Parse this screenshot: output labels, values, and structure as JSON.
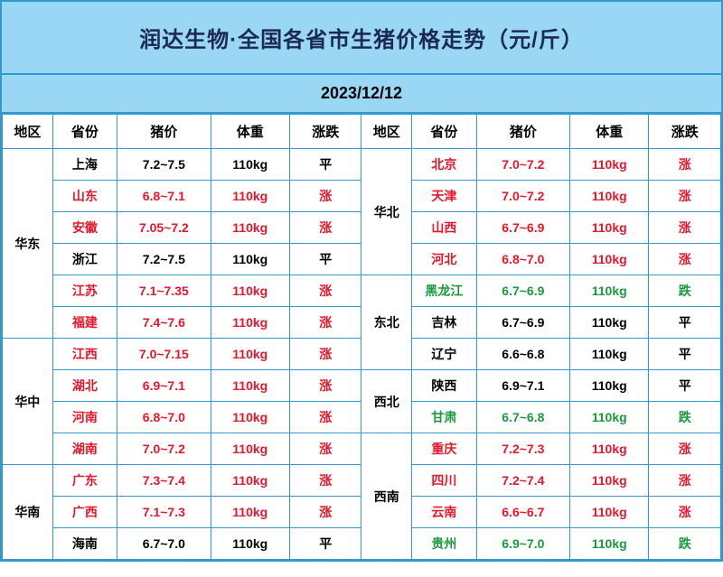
{
  "title": "润达生物·全国各省市生猪价格走势（元/斤）",
  "date": "2023/12/12",
  "colors": {
    "border": "#3399cc",
    "header_bg": "#9ad7f5",
    "title_color": "#1a2a55",
    "up": "#e6172a",
    "down": "#1a9a3a",
    "flat": "#000000",
    "cell_bg": "#ffffff"
  },
  "headers": [
    "地区",
    "省份",
    "猪价",
    "体重",
    "涨跌",
    "地区",
    "省份",
    "猪价",
    "体重",
    "涨跌"
  ],
  "rows": [
    {
      "left_region": {
        "text": "华东",
        "span": 6,
        "color": "black"
      },
      "left": {
        "prov": "上海",
        "price": "7.2~7.5",
        "weight": "110kg",
        "trend": "平",
        "color": "black"
      },
      "right_region": {
        "text": "华北",
        "span": 4,
        "color": "black"
      },
      "right": {
        "prov": "北京",
        "price": "7.0~7.2",
        "weight": "110kg",
        "trend": "涨",
        "color": "red"
      }
    },
    {
      "left": {
        "prov": "山东",
        "price": "6.8~7.1",
        "weight": "110kg",
        "trend": "涨",
        "color": "red"
      },
      "right": {
        "prov": "天津",
        "price": "7.0~7.2",
        "weight": "110kg",
        "trend": "涨",
        "color": "red"
      }
    },
    {
      "left": {
        "prov": "安徽",
        "price": "7.05~7.2",
        "weight": "110kg",
        "trend": "涨",
        "color": "red"
      },
      "right": {
        "prov": "山西",
        "price": "6.7~6.9",
        "weight": "110kg",
        "trend": "涨",
        "color": "red"
      }
    },
    {
      "left": {
        "prov": "浙江",
        "price": "7.2~7.5",
        "weight": "110kg",
        "trend": "平",
        "color": "black"
      },
      "right": {
        "prov": "河北",
        "price": "6.8~7.0",
        "weight": "110kg",
        "trend": "涨",
        "color": "red"
      }
    },
    {
      "left": {
        "prov": "江苏",
        "price": "7.1~7.35",
        "weight": "110kg",
        "trend": "涨",
        "color": "red"
      },
      "right_region": {
        "text": "东北",
        "span": 3,
        "color": "black"
      },
      "right": {
        "prov": "黑龙江",
        "price": "6.7~6.9",
        "weight": "110kg",
        "trend": "跌",
        "color": "green"
      }
    },
    {
      "left": {
        "prov": "福建",
        "price": "7.4~7.6",
        "weight": "110kg",
        "trend": "涨",
        "color": "red"
      },
      "right": {
        "prov": "吉林",
        "price": "6.7~6.9",
        "weight": "110kg",
        "trend": "平",
        "color": "black"
      }
    },
    {
      "left_region": {
        "text": "华中",
        "span": 4,
        "color": "black"
      },
      "left": {
        "prov": "江西",
        "price": "7.0~7.15",
        "weight": "110kg",
        "trend": "涨",
        "color": "red"
      },
      "right": {
        "prov": "辽宁",
        "price": "6.6~6.8",
        "weight": "110kg",
        "trend": "平",
        "color": "black"
      }
    },
    {
      "left": {
        "prov": "湖北",
        "price": "6.9~7.1",
        "weight": "110kg",
        "trend": "涨",
        "color": "red"
      },
      "right_region": {
        "text": "西北",
        "span": 2,
        "color": "black"
      },
      "right": {
        "prov": "陕西",
        "price": "6.9~7.1",
        "weight": "110kg",
        "trend": "平",
        "color": "black"
      }
    },
    {
      "left": {
        "prov": "河南",
        "price": "6.8~7.0",
        "weight": "110kg",
        "trend": "涨",
        "color": "red"
      },
      "right": {
        "prov": "甘肃",
        "price": "6.7~6.8",
        "weight": "110kg",
        "trend": "跌",
        "color": "green"
      }
    },
    {
      "left": {
        "prov": "湖南",
        "price": "7.0~7.2",
        "weight": "110kg",
        "trend": "涨",
        "color": "red"
      },
      "right_region": {
        "text": "西南",
        "span": 4,
        "color": "black"
      },
      "right": {
        "prov": "重庆",
        "price": "7.2~7.3",
        "weight": "110kg",
        "trend": "涨",
        "color": "red"
      }
    },
    {
      "left_region": {
        "text": "华南",
        "span": 3,
        "color": "black"
      },
      "left": {
        "prov": "广东",
        "price": "7.3~7.4",
        "weight": "110kg",
        "trend": "涨",
        "color": "red"
      },
      "right": {
        "prov": "四川",
        "price": "7.2~7.4",
        "weight": "110kg",
        "trend": "涨",
        "color": "red"
      }
    },
    {
      "left": {
        "prov": "广西",
        "price": "7.1~7.3",
        "weight": "110kg",
        "trend": "涨",
        "color": "red"
      },
      "right": {
        "prov": "云南",
        "price": "6.6~6.7",
        "weight": "110kg",
        "trend": "涨",
        "color": "red"
      }
    },
    {
      "left": {
        "prov": "海南",
        "price": "6.7~7.0",
        "weight": "110kg",
        "trend": "平",
        "color": "black"
      },
      "right": {
        "prov": "贵州",
        "price": "6.9~7.0",
        "weight": "110kg",
        "trend": "跌",
        "color": "green"
      }
    }
  ]
}
